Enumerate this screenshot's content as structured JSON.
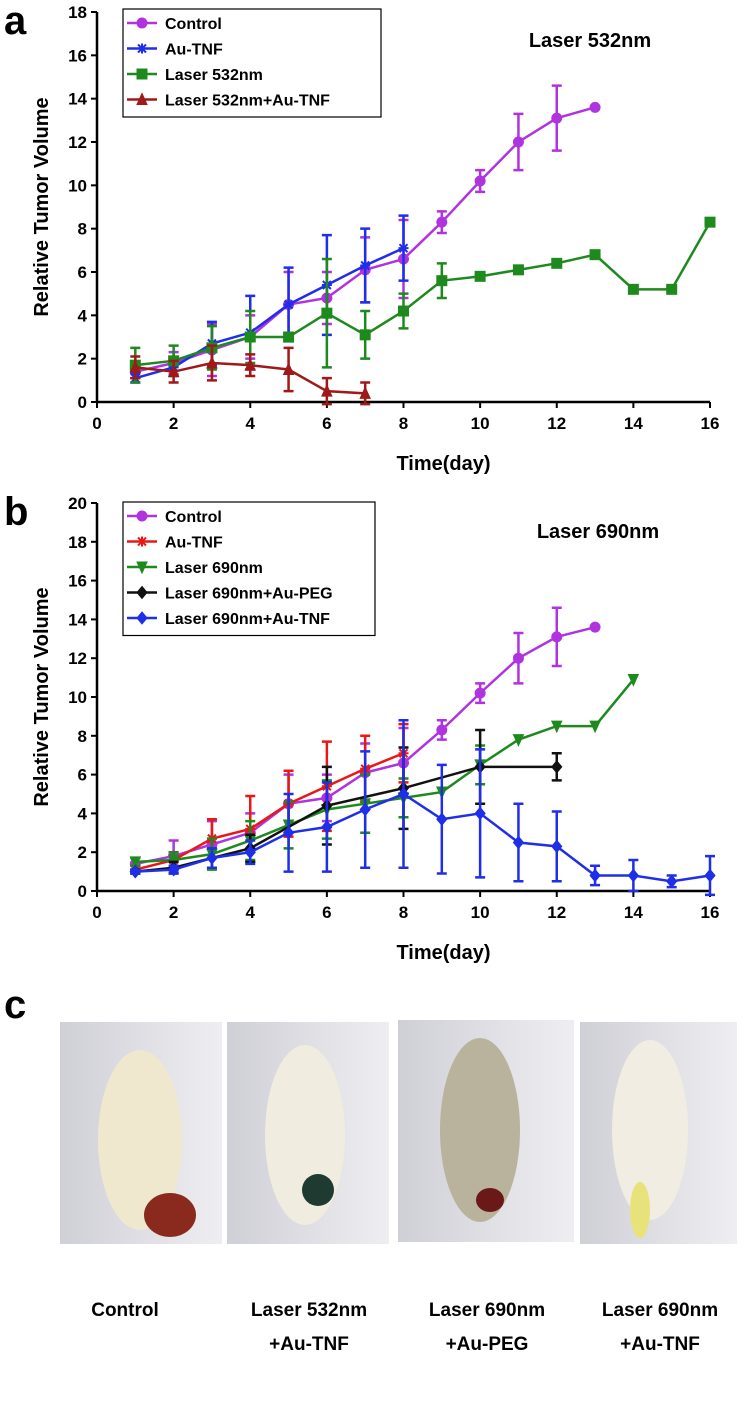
{
  "chart_data": [
    {
      "type": "line",
      "panel": "a",
      "annotation": "Laser 532nm",
      "xlabel": "Time(day)",
      "ylabel": "Relative Tumor Volume",
      "xlim": [
        0,
        16
      ],
      "xticks": [
        0,
        2,
        4,
        6,
        8,
        10,
        12,
        14,
        16
      ],
      "ylim": [
        0,
        18
      ],
      "yticks": [
        0,
        2,
        4,
        6,
        8,
        10,
        12,
        14,
        16,
        18
      ],
      "legend": "upper left",
      "series": [
        {
          "name": "Control",
          "color": "#b033e0",
          "marker": "circle",
          "x": [
            1,
            2,
            3,
            4,
            5,
            6,
            7,
            8,
            9,
            10,
            11,
            12,
            13
          ],
          "values": [
            1.4,
            1.8,
            2.4,
            3.0,
            4.5,
            4.8,
            6.1,
            6.6,
            8.3,
            10.2,
            12.0,
            13.1,
            13.6
          ],
          "errors": [
            0.3,
            0.5,
            1.2,
            1.0,
            1.5,
            1.2,
            1.5,
            1.8,
            0.5,
            0.5,
            1.3,
            1.5,
            null
          ]
        },
        {
          "name": "Au-TNF",
          "color": "#1f2ee8",
          "marker": "star",
          "x": [
            1,
            2,
            3,
            4,
            5,
            6,
            7,
            8
          ],
          "values": [
            1.1,
            1.6,
            2.7,
            3.2,
            4.5,
            5.4,
            6.3,
            7.1
          ],
          "errors": [
            0.2,
            0.4,
            1.0,
            1.7,
            1.7,
            2.3,
            1.7,
            1.5
          ]
        },
        {
          "name": "Laser 532nm",
          "color": "#1e8a1e",
          "marker": "square",
          "x": [
            1,
            2,
            3,
            4,
            5,
            6,
            7,
            8,
            9,
            10,
            11,
            12,
            13,
            14,
            15,
            16
          ],
          "values": [
            1.7,
            1.9,
            2.5,
            3.0,
            3.0,
            4.1,
            3.1,
            4.2,
            5.6,
            5.8,
            6.1,
            6.4,
            6.8,
            5.2,
            5.2,
            8.3
          ],
          "errors": [
            0.8,
            0.7,
            1.0,
            1.2,
            null,
            2.5,
            1.1,
            0.8,
            0.8,
            null,
            null,
            null,
            null,
            null,
            null,
            null
          ]
        },
        {
          "name": "Laser 532nm+Au-TNF",
          "color": "#a01818",
          "marker": "triangle",
          "x": [
            1,
            2,
            3,
            4,
            5,
            6,
            7
          ],
          "values": [
            1.6,
            1.4,
            1.8,
            1.7,
            1.5,
            0.5,
            0.4
          ],
          "errors": [
            0.5,
            0.5,
            0.8,
            0.5,
            1.0,
            0.6,
            0.5
          ]
        }
      ]
    },
    {
      "type": "line",
      "panel": "b",
      "annotation": "Laser 690nm",
      "xlabel": "Time(day)",
      "ylabel": "Relative Tumor Volume",
      "xlim": [
        0,
        16
      ],
      "xticks": [
        0,
        2,
        4,
        6,
        8,
        10,
        12,
        14,
        16
      ],
      "ylim": [
        0,
        20
      ],
      "yticks": [
        0,
        2,
        4,
        6,
        8,
        10,
        12,
        14,
        16,
        18,
        20
      ],
      "legend": "upper left",
      "series": [
        {
          "name": "Control",
          "color": "#b033e0",
          "marker": "circle",
          "x": [
            1,
            2,
            3,
            4,
            5,
            6,
            7,
            8,
            9,
            10,
            11,
            12,
            13
          ],
          "values": [
            1.4,
            1.8,
            2.4,
            3.0,
            4.5,
            4.8,
            6.1,
            6.6,
            8.3,
            10.2,
            12.0,
            13.1,
            13.6
          ],
          "errors": [
            0.3,
            0.8,
            1.2,
            1.0,
            1.5,
            1.2,
            1.5,
            1.8,
            0.5,
            0.5,
            1.3,
            1.5,
            null
          ]
        },
        {
          "name": "Au-TNF",
          "color": "#e81818",
          "marker": "star",
          "x": [
            1,
            2,
            3,
            4,
            5,
            6,
            7,
            8
          ],
          "values": [
            1.1,
            1.6,
            2.7,
            3.2,
            4.5,
            5.4,
            6.3,
            7.1
          ],
          "errors": [
            0.2,
            0.4,
            1.0,
            1.7,
            1.7,
            2.3,
            1.7,
            1.5
          ]
        },
        {
          "name": "Laser 690nm",
          "color": "#1e8a1e",
          "marker": "down-triangle",
          "x": [
            1,
            2,
            3,
            4,
            5,
            6,
            7,
            8,
            9,
            10,
            11,
            12,
            13,
            14
          ],
          "values": [
            1.5,
            1.6,
            1.9,
            2.6,
            3.4,
            4.2,
            4.5,
            4.8,
            5.1,
            6.5,
            7.8,
            8.5,
            8.5,
            10.9
          ],
          "errors": [
            0.2,
            0.4,
            0.8,
            1.0,
            1.2,
            1.5,
            1.5,
            1.0,
            null,
            1.0,
            null,
            null,
            null,
            null
          ]
        },
        {
          "name": "Laser 690nm+Au-PEG",
          "color": "#111111",
          "marker": "diamond",
          "x": [
            1,
            2,
            4,
            6,
            8,
            10,
            12
          ],
          "values": [
            1.0,
            1.2,
            2.2,
            4.4,
            5.3,
            6.4,
            6.4
          ],
          "errors": [
            0.1,
            0.3,
            0.7,
            2.0,
            2.1,
            1.9,
            0.7
          ]
        },
        {
          "name": "Laser 690nm+Au-TNF",
          "color": "#1f2ee8",
          "marker": "diamond",
          "x": [
            1,
            2,
            3,
            4,
            5,
            6,
            7,
            8,
            9,
            10,
            11,
            12,
            13,
            14,
            15,
            16
          ],
          "values": [
            1.0,
            1.1,
            1.7,
            2.0,
            3.0,
            3.3,
            4.2,
            5.0,
            3.7,
            4.0,
            2.5,
            2.3,
            0.8,
            0.8,
            0.5,
            0.8
          ],
          "errors": [
            0.1,
            0.2,
            0.5,
            0.6,
            2.0,
            2.3,
            3.0,
            3.8,
            2.8,
            3.3,
            2.0,
            1.8,
            0.5,
            0.8,
            0.3,
            1.0
          ]
        }
      ]
    }
  ],
  "photos": {
    "panel": "c",
    "captions": [
      [
        "Control"
      ],
      [
        "Laser 532nm",
        "+Au-TNF"
      ],
      [
        "Laser 690nm",
        "+Au-PEG"
      ],
      [
        "Laser 690nm",
        "+Au-TNF"
      ]
    ]
  }
}
